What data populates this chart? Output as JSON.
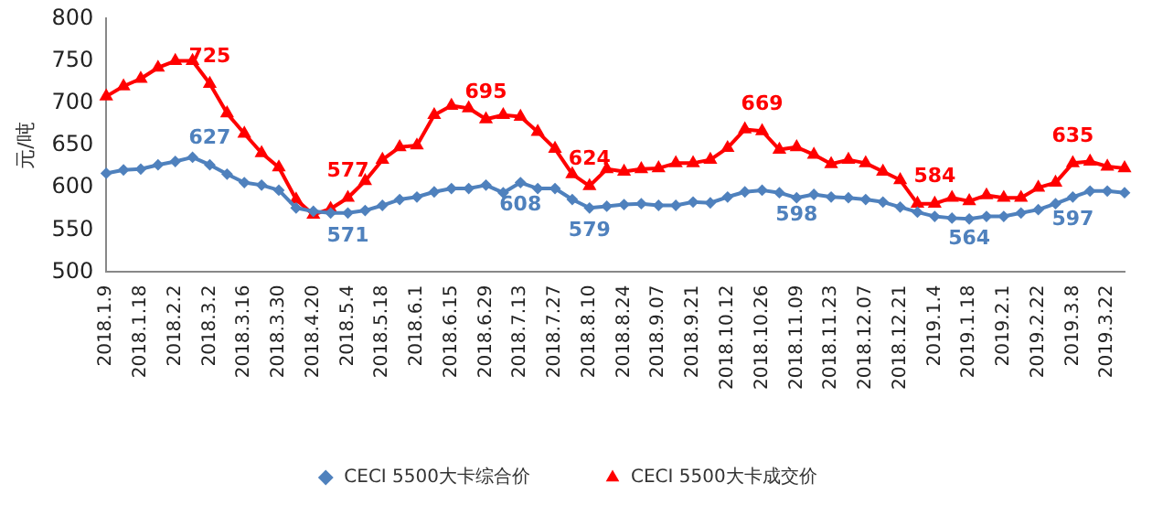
{
  "chart_data": {
    "type": "line",
    "ylabel": "元/吨",
    "categories": [
      "2018.1.9",
      null,
      "2018.1.18",
      null,
      "2018.2.2",
      null,
      "2018.3.2",
      null,
      "2018.3.16",
      null,
      "2018.3.30",
      null,
      "2018.4.20",
      null,
      "2018.5.4",
      null,
      "2018.5.18",
      null,
      "2018.6.1",
      null,
      "2018.6.15",
      null,
      "2018.6.29",
      null,
      "2018.7.13",
      null,
      "2018.7.27",
      null,
      "2018.8.10",
      null,
      "2018.8.24",
      null,
      "2018.9.07",
      null,
      "2018.9.21",
      null,
      "2018.10.12",
      null,
      "2018.10.26",
      null,
      "2018.11.09",
      null,
      "2018.11.23",
      null,
      "2018.12.07",
      null,
      "2018.12.21",
      null,
      "2019.1.4",
      null,
      "2019.1.18",
      null,
      "2019.2.1",
      null,
      "2019.2.22",
      null,
      "2019.3.8",
      null,
      "2019.3.22",
      null
    ],
    "series": [
      {
        "name": "CECI 5500大卡综合价",
        "color": "#4f81bd",
        "marker": "diamond",
        "values": [
          617,
          621,
          622,
          627,
          631,
          636,
          627,
          616,
          606,
          603,
          597,
          576,
          572,
          570,
          570,
          573,
          579,
          586,
          589,
          595,
          599,
          599,
          603,
          594,
          606,
          599,
          599,
          586,
          576,
          578,
          580,
          581,
          579,
          579,
          583,
          582,
          589,
          595,
          597,
          594,
          588,
          592,
          589,
          588,
          586,
          583,
          577,
          571,
          566,
          564,
          563,
          566,
          566,
          570,
          574,
          581,
          589,
          596,
          596,
          594
        ]
      },
      {
        "name": "CECI 5500大卡成交价",
        "color": "#ff0000",
        "marker": "triangle",
        "values": [
          708,
          720,
          729,
          742,
          750,
          750,
          723,
          688,
          664,
          641,
          624,
          586,
          568,
          575,
          588,
          608,
          633,
          648,
          650,
          686,
          697,
          694,
          681,
          686,
          684,
          666,
          646,
          616,
          602,
          622,
          619,
          622,
          623,
          629,
          629,
          633,
          647,
          669,
          667,
          645,
          648,
          639,
          628,
          633,
          629,
          619,
          609,
          581,
          581,
          588,
          584,
          591,
          588,
          588,
          600,
          606,
          629,
          631,
          625,
          623
        ]
      }
    ],
    "ylim": [
      500,
      800
    ],
    "yticks": [
      500,
      550,
      600,
      650,
      700,
      750,
      800
    ],
    "grid": false,
    "legend": "bottom",
    "annotations": [
      {
        "text": "725",
        "x": "2018.3.2",
        "y": 723
      },
      {
        "text": "627",
        "x": "2018.3.2",
        "y": 627
      },
      {
        "text": "577",
        "x": "2018.5.4",
        "y": 588
      },
      {
        "text": "571",
        "x": "2018.5.4",
        "y": 570
      },
      {
        "text": "695",
        "x": "2018.6.29",
        "y": 681
      },
      {
        "text": "608",
        "x": "2018.7.13",
        "y": 606
      },
      {
        "text": "624",
        "x": "2018.8.10",
        "y": 602
      },
      {
        "text": "579",
        "x": "2018.8.10",
        "y": 576
      },
      {
        "text": "669",
        "x": "2018.10.26",
        "y": 667
      },
      {
        "text": "598",
        "x": "2018.11.09",
        "y": 594
      },
      {
        "text": "584",
        "x": "2019.1.4",
        "y": 581
      },
      {
        "text": "564",
        "x": "2019.1.18",
        "y": 566
      },
      {
        "text": "635",
        "x": "2019.3.8",
        "y": 629
      },
      {
        "text": "597",
        "x": "2019.3.8",
        "y": 589
      }
    ]
  }
}
